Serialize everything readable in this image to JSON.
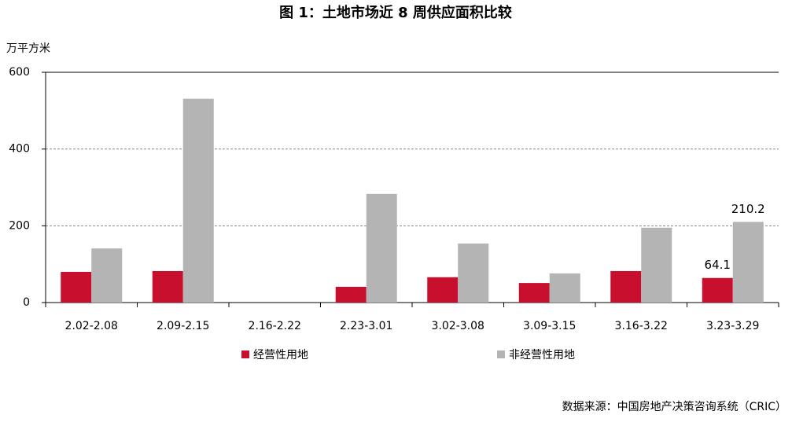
{
  "chart_data": {
    "type": "bar",
    "title": "图 1：土地市场近 8 周供应面积比较",
    "y_label": "万平方米",
    "categories": [
      "2.02-2.08",
      "2.09-2.15",
      "2.16-2.22",
      "2.23-3.01",
      "3.02-3.08",
      "3.09-3.15",
      "3.16-3.22",
      "3.23-3.29"
    ],
    "series": [
      {
        "name": "经营性用地",
        "color": "#c8102e",
        "values": [
          80,
          82,
          0,
          41,
          66,
          51,
          82,
          64.1
        ],
        "value_labels": [
          null,
          null,
          null,
          null,
          null,
          null,
          null,
          "64.1"
        ]
      },
      {
        "name": "非经营性用地",
        "color": "#b4b4b4",
        "values": [
          141,
          531,
          0,
          283,
          154,
          76,
          195,
          210.2
        ],
        "value_labels": [
          null,
          null,
          null,
          null,
          null,
          null,
          null,
          "210.2"
        ]
      }
    ],
    "ylim": [
      0,
      600
    ],
    "yticks": [
      0,
      200,
      400,
      600
    ],
    "grid": true,
    "source": "数据来源：中国房地产决策咨询系统（CRIC）"
  }
}
